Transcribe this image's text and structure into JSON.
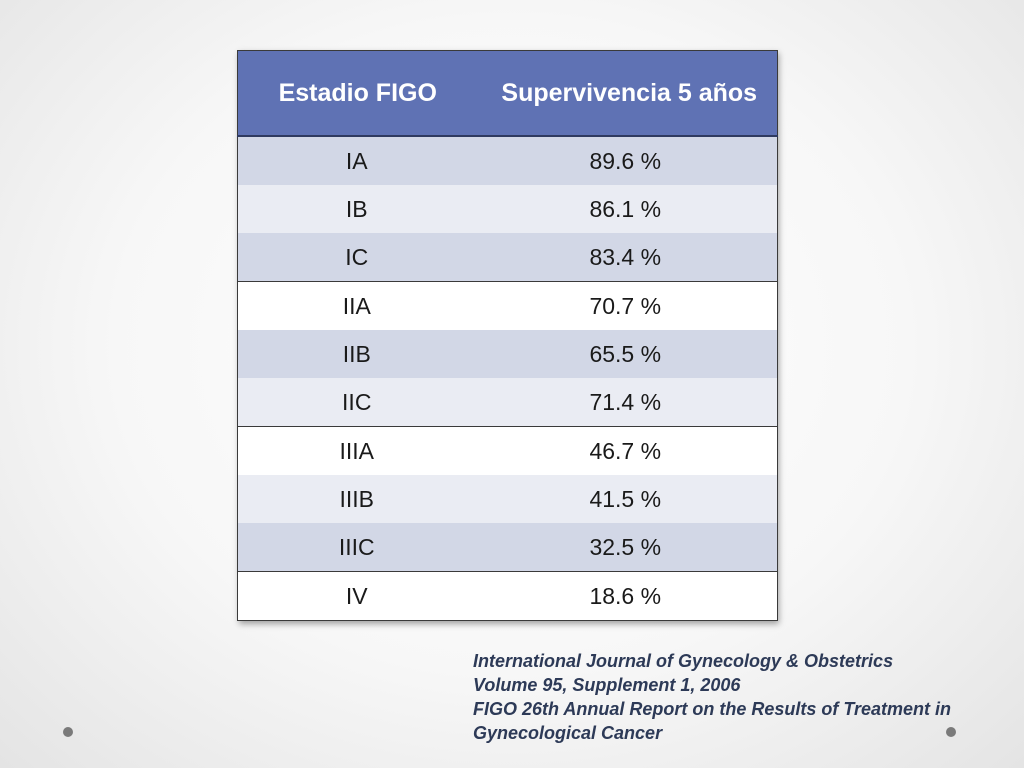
{
  "table": {
    "headers": [
      "Estadio FIGO",
      "Supervivencia 5 años"
    ],
    "rows": [
      {
        "stage": "IA",
        "survival": "89.6 %"
      },
      {
        "stage": "IB",
        "survival": "86.1 %"
      },
      {
        "stage": "IC",
        "survival": "83.4 %"
      },
      {
        "stage": "IIA",
        "survival": "70.7 %"
      },
      {
        "stage": "IIB",
        "survival": "65.5 %"
      },
      {
        "stage": "IIC",
        "survival": "71.4 %"
      },
      {
        "stage": "IIIA",
        "survival": "46.7 %"
      },
      {
        "stage": "IIIB",
        "survival": "41.5 %"
      },
      {
        "stage": "IIIC",
        "survival": "32.5 %"
      },
      {
        "stage": "IV",
        "survival": "18.6 %"
      }
    ]
  },
  "citation": {
    "lines": [
      "International Journal of Gynecology & Obstetrics",
      "Volume 95, Supplement 1, 2006",
      "FIGO 26th Annual Report on the Results of Treatment in",
      "Gynecological Cancer"
    ]
  },
  "colors": {
    "header_bg": "#5f72b4",
    "row_dark": "#d2d7e6",
    "row_light": "#eaecf3",
    "citation_text": "#2d3a57"
  }
}
